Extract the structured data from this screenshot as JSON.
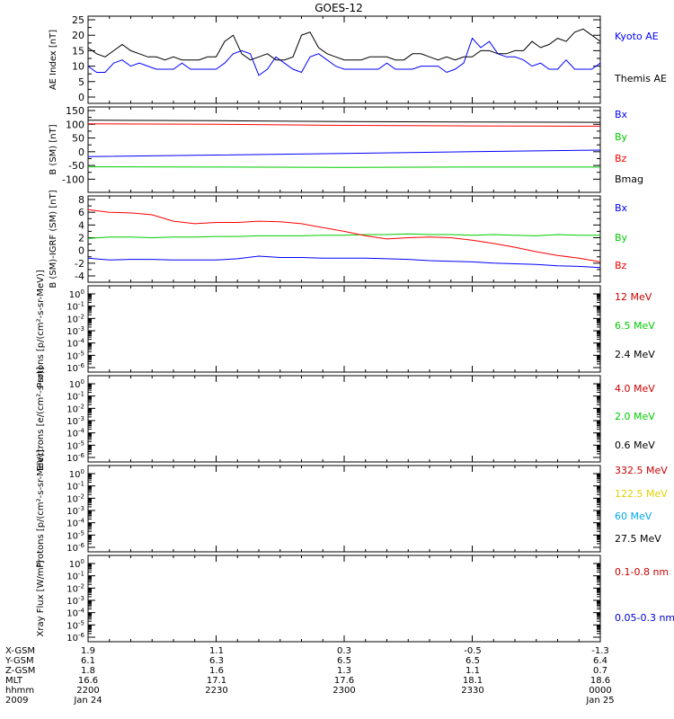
{
  "title": "GOES-12",
  "chart_data": [
    {
      "type": "line",
      "ylabel": "AE Index [nT]",
      "ylim": [
        0,
        25
      ],
      "yticks": [
        0,
        5,
        10,
        15,
        20,
        25
      ],
      "series": [
        {
          "name": "Kyoto AE",
          "color": "#0000ff",
          "x": [
            0,
            2,
            4,
            6,
            8,
            10,
            12,
            14,
            16,
            18,
            20,
            22,
            24,
            26,
            28,
            30,
            32,
            34,
            36,
            38,
            40,
            42,
            44,
            46,
            48,
            50,
            52,
            54,
            56,
            58,
            60,
            62,
            64,
            66,
            68,
            70,
            72,
            74,
            76,
            78,
            80,
            82,
            84,
            86,
            88,
            90,
            92,
            94,
            96,
            98,
            100,
            102,
            104,
            106,
            108,
            110,
            112,
            114,
            116,
            118,
            120
          ],
          "y": [
            10,
            8,
            8,
            11,
            12,
            10,
            11,
            10,
            9,
            9,
            9,
            11,
            9,
            9,
            9,
            9,
            11,
            14,
            15,
            14,
            7,
            9,
            13,
            11,
            9,
            8,
            13,
            14,
            12,
            10,
            9,
            9,
            9,
            9,
            9,
            11,
            9,
            9,
            9,
            10,
            10,
            10,
            8,
            9,
            11,
            19,
            16,
            18,
            14,
            13,
            13,
            12,
            10,
            11,
            9,
            9,
            12,
            9,
            9,
            9,
            11
          ]
        },
        {
          "name": "Themis AE",
          "color": "#000000",
          "x": [
            0,
            2,
            4,
            6,
            8,
            10,
            12,
            14,
            16,
            18,
            20,
            22,
            24,
            26,
            28,
            30,
            32,
            34,
            36,
            38,
            40,
            42,
            44,
            46,
            48,
            50,
            52,
            54,
            56,
            58,
            60,
            62,
            64,
            66,
            68,
            70,
            72,
            74,
            76,
            78,
            80,
            82,
            84,
            86,
            88,
            90,
            92,
            94,
            96,
            98,
            100,
            102,
            104,
            106,
            108,
            110,
            112,
            114,
            116,
            118,
            120
          ],
          "y": [
            16,
            14,
            13,
            15,
            17,
            15,
            14,
            13,
            13,
            12,
            13,
            12,
            12,
            12,
            13,
            13,
            18,
            20,
            14,
            12,
            13,
            14,
            12,
            12,
            13,
            20,
            21,
            16,
            14,
            13,
            12,
            12,
            12,
            13,
            13,
            13,
            12,
            12,
            14,
            14,
            13,
            12,
            13,
            12,
            13,
            13,
            15,
            15,
            14,
            14,
            15,
            15,
            18,
            16,
            17,
            19,
            18,
            21,
            22,
            20,
            18
          ]
        }
      ]
    },
    {
      "type": "line",
      "ylabel": "B (SM) [nT]",
      "ylim": [
        -125,
        150
      ],
      "yticks": [
        -100,
        -50,
        0,
        50,
        100,
        150
      ],
      "series": [
        {
          "name": "Bx",
          "color": "#0000ff",
          "x": [
            0,
            30,
            60,
            90,
            120
          ],
          "y": [
            -18,
            -12,
            -6,
            0,
            6
          ]
        },
        {
          "name": "By",
          "color": "#00cc00",
          "x": [
            0,
            30,
            60,
            90,
            120
          ],
          "y": [
            -55,
            -56,
            -57,
            -56,
            -56
          ]
        },
        {
          "name": "Bz",
          "color": "#ff0000",
          "x": [
            0,
            30,
            60,
            90,
            120
          ],
          "y": [
            102,
            100,
            96,
            94,
            93
          ]
        },
        {
          "name": "Bmag",
          "color": "#000000",
          "x": [
            0,
            30,
            60,
            90,
            120
          ],
          "y": [
            115,
            113,
            110,
            108,
            107
          ]
        }
      ]
    },
    {
      "type": "line",
      "ylabel": "B (SM)-IGRF (SM) [nT]",
      "ylim": [
        -4,
        8
      ],
      "yticks": [
        -4,
        -2,
        0,
        2,
        4,
        6,
        8
      ],
      "series": [
        {
          "name": "Bx",
          "color": "#0000ff",
          "x": [
            0,
            5,
            10,
            15,
            20,
            25,
            30,
            35,
            40,
            45,
            50,
            55,
            60,
            65,
            70,
            75,
            80,
            85,
            90,
            95,
            100,
            105,
            110,
            115,
            120
          ],
          "y": [
            -1.2,
            -1.5,
            -1.4,
            -1.4,
            -1.5,
            -1.5,
            -1.5,
            -1.3,
            -0.9,
            -1.1,
            -1.1,
            -1.2,
            -1.2,
            -1.2,
            -1.3,
            -1.4,
            -1.6,
            -1.7,
            -1.8,
            -2.0,
            -2.1,
            -2.2,
            -2.4,
            -2.5,
            -2.7
          ]
        },
        {
          "name": "By",
          "color": "#00cc00",
          "x": [
            0,
            5,
            10,
            15,
            20,
            25,
            30,
            35,
            40,
            45,
            50,
            55,
            60,
            65,
            70,
            75,
            80,
            85,
            90,
            95,
            100,
            105,
            110,
            115,
            120
          ],
          "y": [
            1.9,
            2.1,
            2.1,
            2.0,
            2.1,
            2.1,
            2.2,
            2.2,
            2.3,
            2.3,
            2.3,
            2.4,
            2.4,
            2.5,
            2.5,
            2.6,
            2.5,
            2.5,
            2.4,
            2.5,
            2.4,
            2.3,
            2.5,
            2.4,
            2.4
          ]
        },
        {
          "name": "Bz",
          "color": "#ff0000",
          "x": [
            0,
            5,
            10,
            15,
            20,
            25,
            30,
            35,
            40,
            45,
            50,
            55,
            60,
            65,
            70,
            75,
            80,
            85,
            90,
            95,
            100,
            105,
            110,
            115,
            120
          ],
          "y": [
            6.4,
            6.0,
            5.9,
            5.6,
            4.6,
            4.2,
            4.4,
            4.4,
            4.6,
            4.5,
            4.2,
            3.6,
            3.0,
            2.3,
            1.8,
            2.0,
            2.1,
            2.0,
            1.6,
            1.1,
            0.5,
            -0.2,
            -0.8,
            -1.2,
            -1.8
          ]
        }
      ]
    },
    {
      "type": "line",
      "ylabel": "Protons [p/(cm²-s-sr-MeV)]",
      "yscale": "log",
      "ylim": [
        -6,
        0
      ],
      "yticks": [
        -6,
        -5,
        -4,
        -3,
        -2,
        -1,
        0
      ],
      "series": [
        {
          "name": "12 MeV",
          "color": "#cc0000",
          "x": [],
          "y": []
        },
        {
          "name": "6.5 MeV",
          "color": "#00cc00",
          "x": [],
          "y": []
        },
        {
          "name": "2.4 MeV",
          "color": "#000000",
          "x": [],
          "y": []
        }
      ]
    },
    {
      "type": "line",
      "ylabel": "Electrons [e/(cm²-s-sr)]",
      "yscale": "log",
      "ylim": [
        -6,
        0
      ],
      "yticks": [
        -6,
        -5,
        -4,
        -3,
        -2,
        -1,
        0
      ],
      "series": [
        {
          "name": "4.0 MeV",
          "color": "#cc0000",
          "x": [],
          "y": []
        },
        {
          "name": "2.0 MeV",
          "color": "#00cc00",
          "x": [],
          "y": []
        },
        {
          "name": "0.6 MeV",
          "color": "#000000",
          "x": [],
          "y": []
        }
      ]
    },
    {
      "type": "line",
      "ylabel": "Protons [p/(cm²-s-sr-MeV)]",
      "yscale": "log",
      "ylim": [
        -6,
        0
      ],
      "yticks": [
        -6,
        -5,
        -4,
        -3,
        -2,
        -1,
        0
      ],
      "series": [
        {
          "name": "332.5 MeV",
          "color": "#cc0000",
          "x": [],
          "y": []
        },
        {
          "name": "122.5 MeV",
          "color": "#e0d000",
          "x": [],
          "y": []
        },
        {
          "name": "60 MeV",
          "color": "#00aaee",
          "x": [],
          "y": []
        },
        {
          "name": "27.5 MeV",
          "color": "#000000",
          "x": [],
          "y": []
        }
      ]
    },
    {
      "type": "line",
      "ylabel": "Xray Flux [W/m²]",
      "yscale": "log",
      "ylim": [
        -6,
        0
      ],
      "yticks": [
        -6,
        -5,
        -4,
        -3,
        -2,
        -1,
        0
      ],
      "series": [
        {
          "name": "0.1-0.8 nm",
          "color": "#cc0000",
          "x": [],
          "y": []
        },
        {
          "name": "0.05-0.3 nm",
          "color": "#0000cc",
          "x": [],
          "y": []
        }
      ]
    }
  ],
  "footer": {
    "row_labels": [
      "X-GSM",
      "Y-GSM",
      "Z-GSM",
      "MLT",
      "hhmm",
      "2009"
    ],
    "columns": [
      [
        "1.9",
        "6.1",
        "1.8",
        "16.6",
        "2200",
        "Jan 24"
      ],
      [
        "1.1",
        "6.3",
        "1.6",
        "17.1",
        "2230",
        ""
      ],
      [
        "0.3",
        "6.5",
        "1.3",
        "17.6",
        "2300",
        ""
      ],
      [
        "-0.5",
        "6.5",
        "1.1",
        "18.1",
        "2330",
        ""
      ],
      [
        "-1.3",
        "6.4",
        "0.7",
        "18.6",
        "0000",
        "Jan 25"
      ]
    ]
  }
}
